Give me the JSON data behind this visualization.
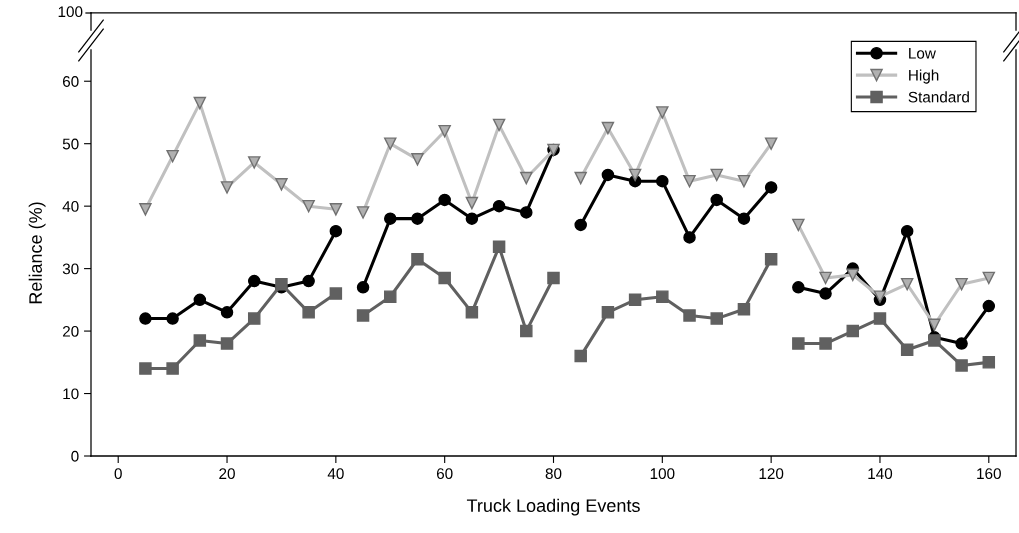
{
  "chart_data": {
    "type": "line",
    "xlabel": "Truck Loading Events",
    "ylabel": "Reliance (%)",
    "annotations": [
      "100"
    ],
    "xlim": [
      -5,
      165
    ],
    "xticks": [
      0,
      20,
      40,
      60,
      80,
      100,
      120,
      140,
      160
    ],
    "ylim": [
      0,
      65
    ],
    "yticks": [
      0,
      10,
      20,
      30,
      40,
      50,
      60
    ],
    "grid": false,
    "legend": "top right",
    "line_style": "solid",
    "x": [
      5,
      10,
      15,
      20,
      25,
      30,
      35,
      40,
      42.5,
      45,
      50,
      55,
      60,
      65,
      70,
      75,
      80,
      82.5,
      85,
      90,
      95,
      100,
      105,
      110,
      115,
      120,
      122.5,
      125,
      130,
      135,
      140,
      145,
      150,
      155,
      160
    ],
    "series": [
      {
        "name": "Low",
        "color": "#000000",
        "marker": "circle",
        "values": [
          22,
          22,
          25,
          23,
          28,
          27,
          28,
          36,
          null,
          27,
          38,
          38,
          41,
          38,
          40,
          39,
          49,
          null,
          37,
          45,
          44,
          44,
          35,
          41,
          38,
          43,
          null,
          27,
          26,
          30,
          25,
          36,
          19,
          18,
          24
        ]
      },
      {
        "name": "High",
        "color": "#c0c0c0",
        "marker": "triangle",
        "values": [
          39.5,
          48,
          56.5,
          43,
          47,
          43.5,
          40,
          39.5,
          null,
          39,
          50,
          47.5,
          52,
          40.5,
          53,
          44.5,
          49,
          null,
          44.5,
          52.5,
          45,
          55,
          44,
          45,
          44,
          50,
          null,
          37,
          28.5,
          29,
          25.5,
          27.5,
          21,
          27.5,
          28.5
        ]
      },
      {
        "name": "Standard",
        "color": "#606060",
        "marker": "square",
        "values": [
          14,
          14,
          18.5,
          18,
          22,
          27.5,
          23,
          26,
          null,
          22.5,
          25.5,
          31.5,
          28.5,
          23,
          33.5,
          20,
          28.5,
          null,
          16,
          23,
          25,
          25.5,
          22.5,
          22,
          23.5,
          31.5,
          null,
          18,
          18,
          20,
          22,
          17,
          18.5,
          14.5,
          15
        ]
      }
    ]
  }
}
